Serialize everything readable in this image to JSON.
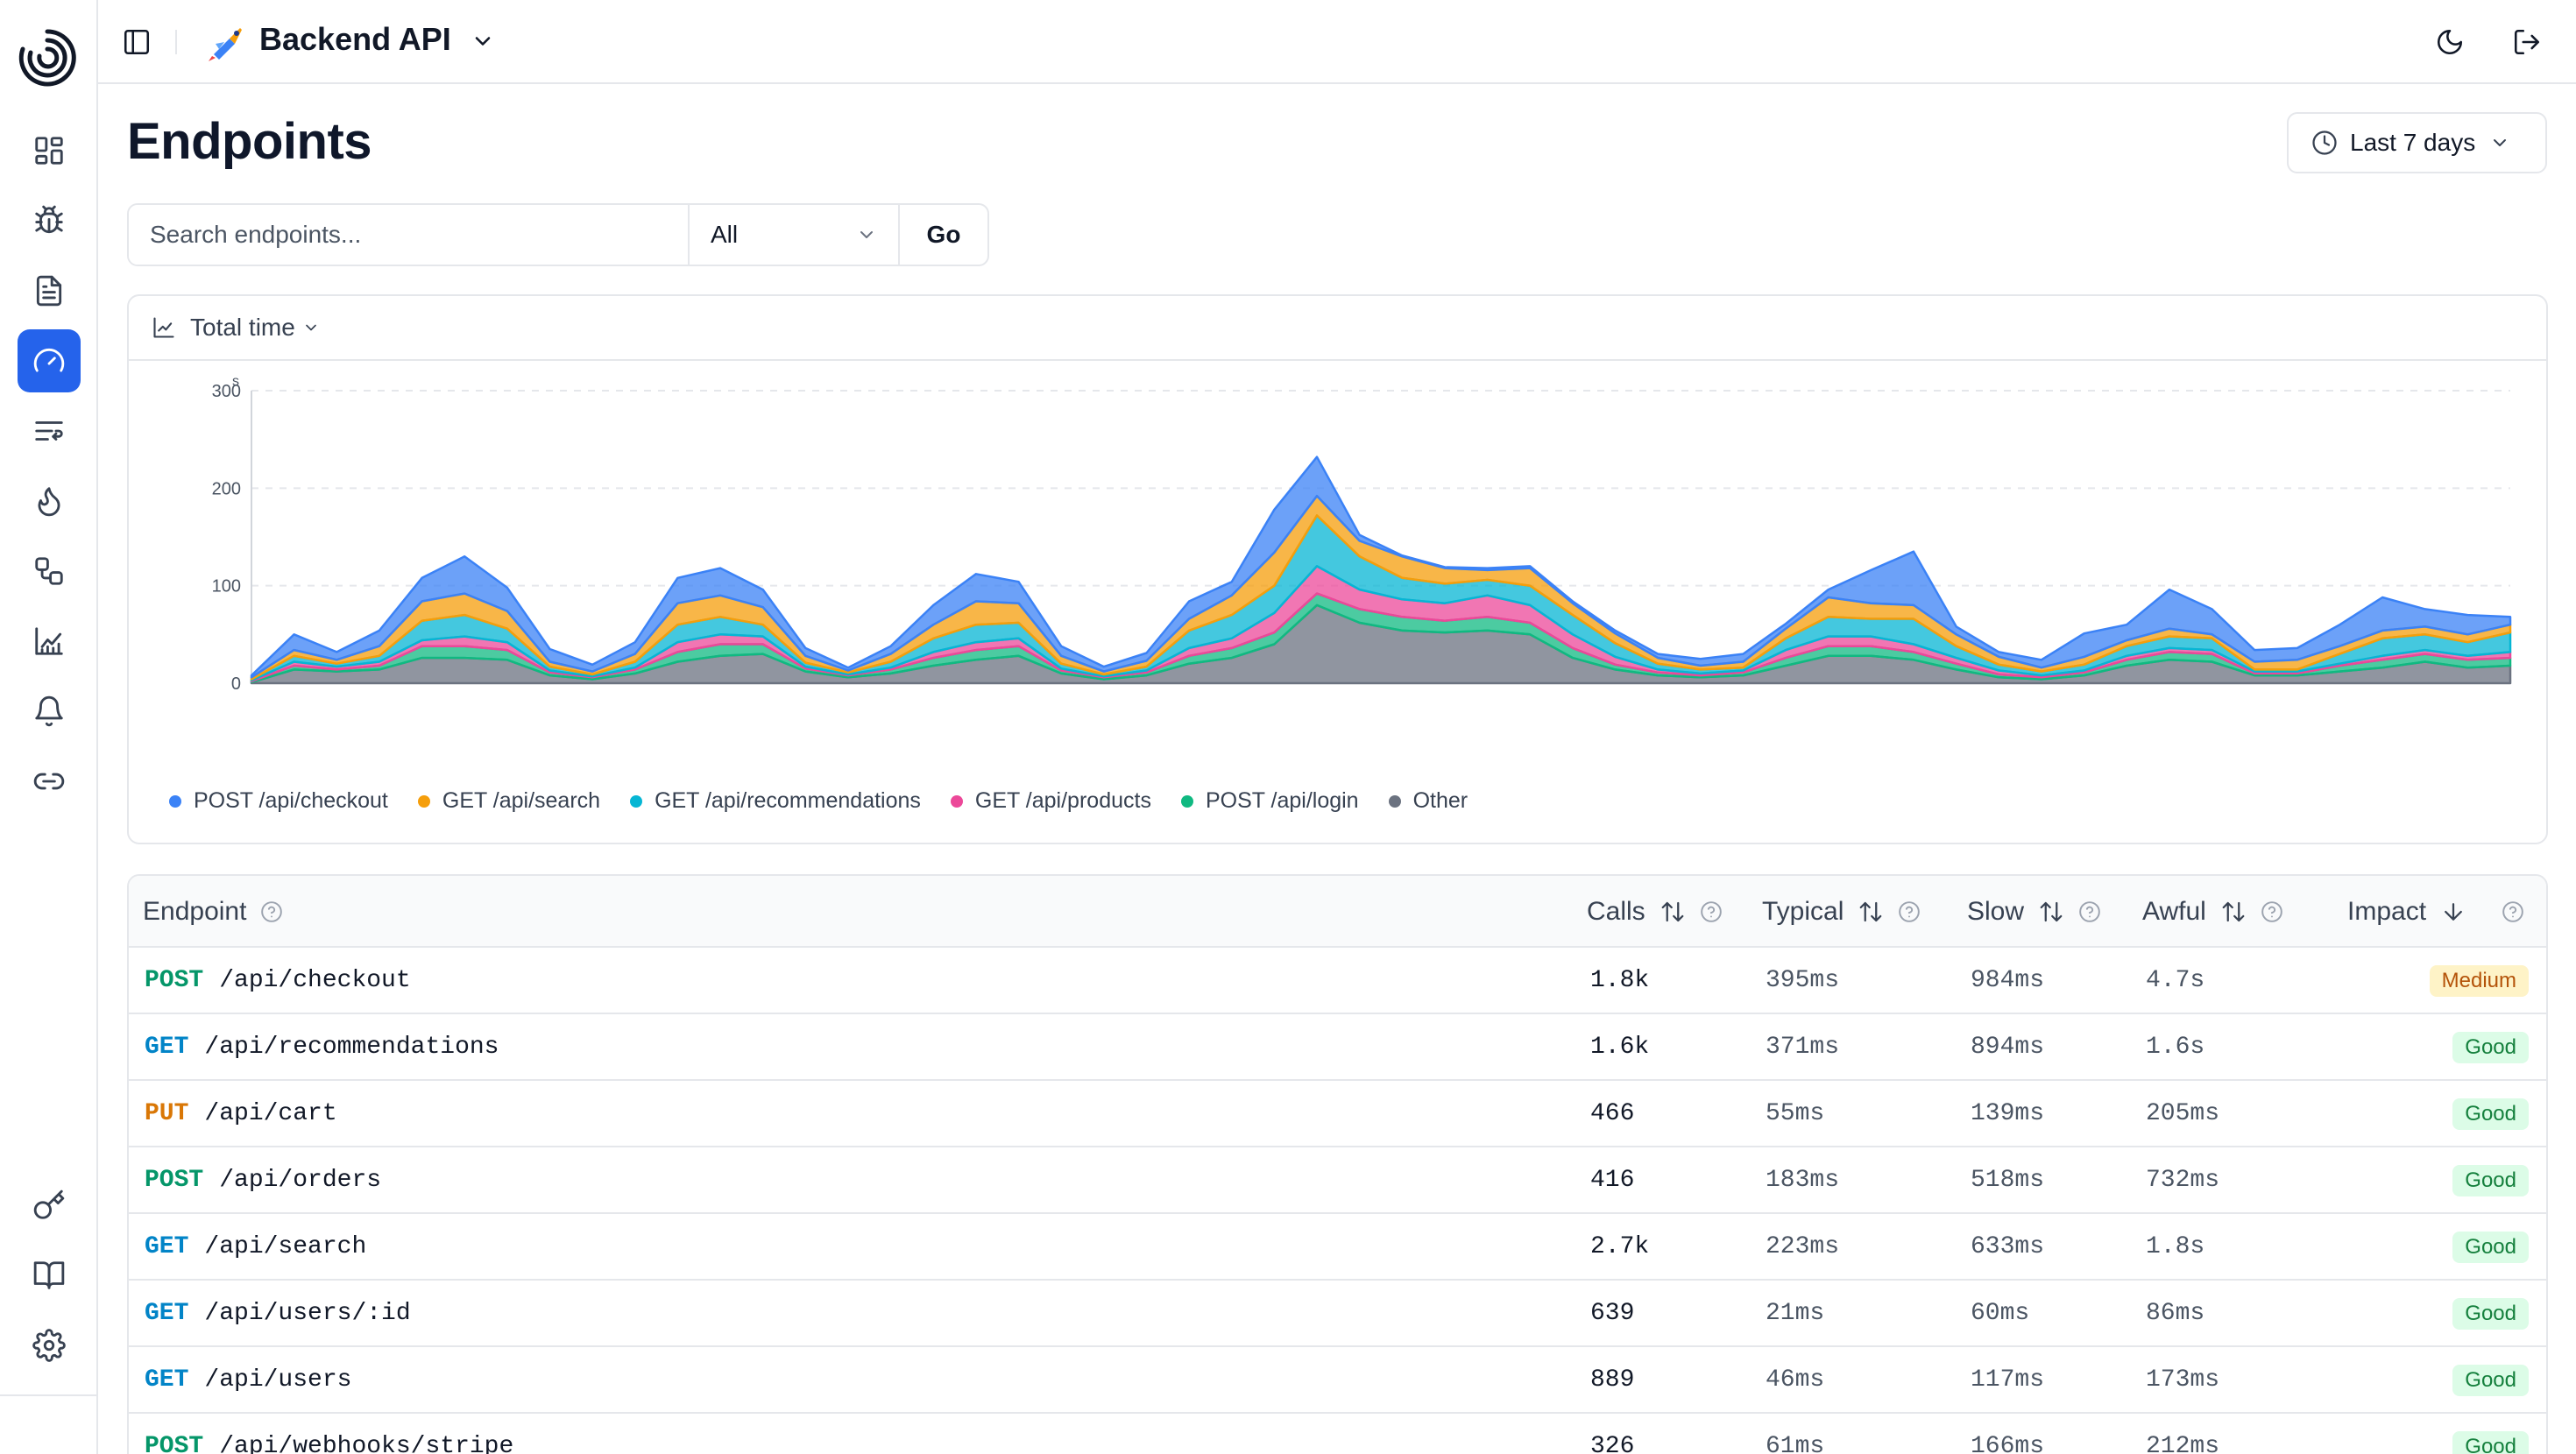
{
  "colors": {
    "accent": "#2563eb",
    "series": [
      "#3b82f6",
      "#f59e0b",
      "#06b6d4",
      "#ec4899",
      "#10b981",
      "#6b7280"
    ]
  },
  "sidebar": {
    "items": [
      {
        "name": "dashboard-icon"
      },
      {
        "name": "bug-icon"
      },
      {
        "name": "file-text-icon"
      },
      {
        "name": "gauge-icon",
        "active": true
      },
      {
        "name": "list-flow-icon"
      },
      {
        "name": "flame-icon"
      },
      {
        "name": "workflow-icon"
      },
      {
        "name": "chart-line-icon"
      },
      {
        "name": "bell-icon"
      },
      {
        "name": "link-icon"
      }
    ],
    "bottom_items": [
      {
        "name": "key-icon"
      },
      {
        "name": "book-icon"
      },
      {
        "name": "settings-icon"
      }
    ]
  },
  "header": {
    "project_name": "Backend API",
    "project_icon": "rocket-icon"
  },
  "page": {
    "title": "Endpoints",
    "time_range": "Last 7 days"
  },
  "filters": {
    "search_placeholder": "Search endpoints...",
    "method_selected": "All",
    "go_label": "Go"
  },
  "chart_data": {
    "type": "area",
    "stacked": true,
    "metric_label": "Total time",
    "yunit": "s",
    "ylim": [
      0,
      300
    ],
    "yticks": [
      0,
      100,
      200,
      300
    ],
    "grid": true,
    "legend_position": "bottom-left",
    "series": [
      {
        "name": "POST /api/checkout",
        "color": "#3b82f6",
        "values": [
          2,
          16,
          8,
          16,
          24,
          38,
          24,
          13,
          7,
          12,
          26,
          28,
          18,
          8,
          3,
          8,
          20,
          28,
          22,
          10,
          5,
          8,
          18,
          14,
          44,
          40,
          6,
          1,
          1,
          2,
          2,
          2,
          3,
          4,
          7,
          8,
          5,
          8,
          34,
          55,
          8,
          5,
          8,
          24,
          16,
          40,
          26,
          12,
          12,
          22,
          34,
          18,
          20,
          8
        ]
      },
      {
        "name": "GET /api/search",
        "color": "#f59e0b",
        "values": [
          2,
          6,
          4,
          10,
          20,
          22,
          18,
          5,
          3,
          8,
          22,
          22,
          18,
          7,
          2,
          8,
          14,
          24,
          20,
          8,
          3,
          6,
          12,
          20,
          34,
          20,
          16,
          22,
          16,
          10,
          18,
          12,
          10,
          6,
          4,
          6,
          10,
          20,
          16,
          14,
          12,
          8,
          4,
          8,
          6,
          8,
          4,
          8,
          10,
          8,
          8,
          8,
          8,
          8
        ]
      },
      {
        "name": "GET /api/recommendations",
        "color": "#06b6d4",
        "values": [
          1,
          6,
          3,
          6,
          20,
          22,
          14,
          4,
          2,
          6,
          18,
          18,
          12,
          4,
          2,
          6,
          14,
          18,
          16,
          5,
          2,
          4,
          18,
          24,
          28,
          52,
          34,
          22,
          20,
          16,
          20,
          20,
          14,
          6,
          4,
          3,
          12,
          20,
          18,
          26,
          12,
          6,
          4,
          6,
          10,
          12,
          12,
          2,
          2,
          10,
          18,
          16,
          14,
          20
        ]
      },
      {
        "name": "GET /api/products",
        "color": "#ec4899",
        "values": [
          1,
          4,
          3,
          4,
          6,
          10,
          8,
          2,
          1,
          2,
          10,
          10,
          8,
          2,
          1,
          2,
          6,
          8,
          8,
          2,
          1,
          2,
          8,
          10,
          20,
          28,
          20,
          18,
          18,
          22,
          18,
          14,
          8,
          3,
          2,
          2,
          8,
          10,
          10,
          8,
          6,
          4,
          2,
          2,
          4,
          4,
          4,
          2,
          2,
          2,
          4,
          4,
          4,
          6
        ]
      },
      {
        "name": "POST /api/login",
        "color": "#10b981",
        "values": [
          1,
          4,
          2,
          4,
          12,
          12,
          10,
          3,
          2,
          4,
          10,
          12,
          10,
          3,
          2,
          4,
          8,
          10,
          10,
          3,
          2,
          3,
          8,
          10,
          12,
          12,
          14,
          14,
          12,
          14,
          12,
          10,
          5,
          3,
          2,
          3,
          8,
          10,
          10,
          8,
          6,
          3,
          2,
          3,
          6,
          8,
          8,
          2,
          2,
          6,
          8,
          8,
          8,
          8
        ]
      },
      {
        "name": "Other",
        "color": "#6b7280",
        "values": [
          1,
          14,
          12,
          14,
          26,
          26,
          24,
          8,
          4,
          10,
          22,
          28,
          30,
          12,
          6,
          10,
          18,
          24,
          28,
          10,
          4,
          8,
          20,
          26,
          40,
          80,
          62,
          54,
          52,
          54,
          50,
          26,
          14,
          8,
          6,
          8,
          18,
          28,
          28,
          24,
          14,
          6,
          4,
          8,
          18,
          24,
          22,
          8,
          8,
          12,
          16,
          22,
          16,
          18
        ]
      }
    ]
  },
  "table": {
    "columns": {
      "endpoint": "Endpoint",
      "calls": "Calls",
      "typical": "Typical",
      "slow": "Slow",
      "awful": "Awful",
      "impact": "Impact"
    },
    "rows": [
      {
        "method": "POST",
        "path": "/api/checkout",
        "calls": "1.8k",
        "typical": "395ms",
        "slow": "984ms",
        "awful": "4.7s",
        "impact": "Medium"
      },
      {
        "method": "GET",
        "path": "/api/recommendations",
        "calls": "1.6k",
        "typical": "371ms",
        "slow": "894ms",
        "awful": "1.6s",
        "impact": "Good"
      },
      {
        "method": "PUT",
        "path": "/api/cart",
        "calls": "466",
        "typical": "55ms",
        "slow": "139ms",
        "awful": "205ms",
        "impact": "Good"
      },
      {
        "method": "POST",
        "path": "/api/orders",
        "calls": "416",
        "typical": "183ms",
        "slow": "518ms",
        "awful": "732ms",
        "impact": "Good"
      },
      {
        "method": "GET",
        "path": "/api/search",
        "calls": "2.7k",
        "typical": "223ms",
        "slow": "633ms",
        "awful": "1.8s",
        "impact": "Good"
      },
      {
        "method": "GET",
        "path": "/api/users/:id",
        "calls": "639",
        "typical": "21ms",
        "slow": "60ms",
        "awful": "86ms",
        "impact": "Good"
      },
      {
        "method": "GET",
        "path": "/api/users",
        "calls": "889",
        "typical": "46ms",
        "slow": "117ms",
        "awful": "173ms",
        "impact": "Good"
      },
      {
        "method": "POST",
        "path": "/api/webhooks/stripe",
        "calls": "326",
        "typical": "61ms",
        "slow": "166ms",
        "awful": "212ms",
        "impact": "Good"
      }
    ]
  }
}
